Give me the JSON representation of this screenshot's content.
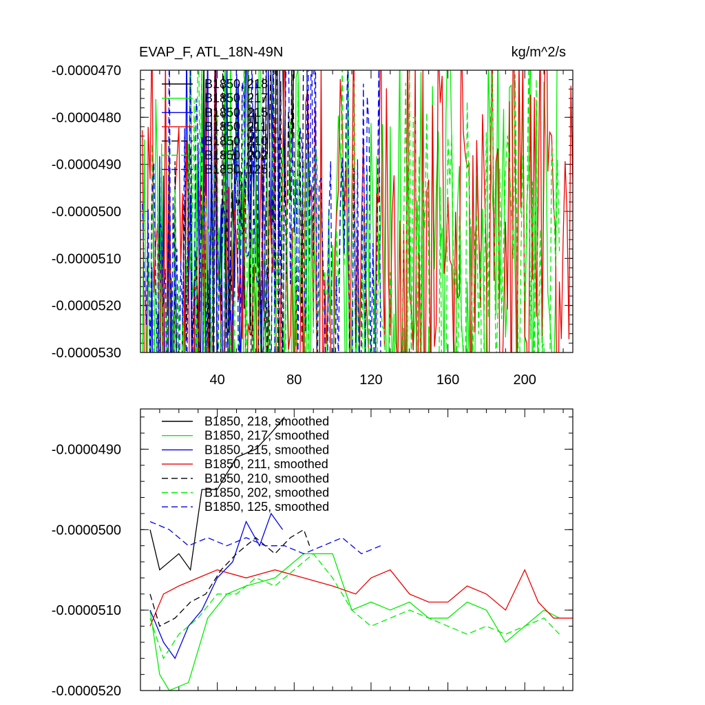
{
  "chart_data": [
    {
      "type": "line",
      "title": "EVAP_F, ATL_18N-49N",
      "units": "kg/m^2/s",
      "xlim": [
        0,
        225
      ],
      "ylim": [
        -5.3e-05,
        -4.7e-05
      ],
      "x_tick_labels": [
        "40",
        "80",
        "120",
        "160",
        "200"
      ],
      "x_ticks": [
        40,
        80,
        120,
        160,
        200
      ],
      "y_tick_labels": [
        "-0.0000470",
        "-0.0000480",
        "-0.0000490",
        "-0.0000500",
        "-0.0000510",
        "-0.0000520",
        "-0.0000530"
      ],
      "y_ticks": [
        -4.7e-05,
        -4.8e-05,
        -4.9e-05,
        -5e-05,
        -5.1e-05,
        -5.2e-05,
        -5.3e-05
      ],
      "series": [
        {
          "name": "B1850, 218",
          "label": "B1850, 218",
          "color": "#000000",
          "dash": "solid",
          "length": 88,
          "mean": -5.08e-05,
          "trend": 1.12e-05,
          "noise": 8.5e-06,
          "seed": 11
        },
        {
          "name": "B1850, 217",
          "label": "B1850, 217",
          "color": "#00ee00",
          "dash": "solid",
          "length": 217,
          "mean": -5.12e-05,
          "trend": 8e-07,
          "noise": 8.5e-06,
          "seed": 23
        },
        {
          "name": "B1850, 215",
          "label": "B1850, 215",
          "color": "#0000ee",
          "dash": "solid",
          "length": 74,
          "mean": -5.11e-05,
          "trend": 6.5e-06,
          "noise": 8e-06,
          "seed": 37
        },
        {
          "name": "B1850, 211",
          "label": "B1850, 211",
          "color": "#ee0000",
          "dash": "solid",
          "length": 225,
          "mean": -5.1e-05,
          "trend": 1.4e-06,
          "noise": 8e-06,
          "seed": 41
        },
        {
          "name": "B1850, 210",
          "label": "B1850, 210",
          "color": "#000000",
          "dash": "dashed",
          "length": 88,
          "mean": -5.11e-05,
          "trend": 4.8e-06,
          "noise": 8e-06,
          "seed": 53
        },
        {
          "name": "B1850, 202",
          "label": "B1850, 202",
          "color": "#00ee00",
          "dash": "dashed",
          "length": 218,
          "mean": -5.14e-05,
          "trend": 5e-07,
          "noise": 8.5e-06,
          "seed": 67
        },
        {
          "name": "B1850, 125",
          "label": "B1850, 125",
          "color": "#0000ee",
          "dash": "dashed",
          "length": 125,
          "mean": -5.04e-05,
          "trend": 1e-07,
          "noise": 7.5e-06,
          "seed": 79
        }
      ]
    },
    {
      "type": "line",
      "title": "",
      "xlim": [
        0,
        225
      ],
      "ylim": [
        -5.2e-05,
        -4.85e-05
      ],
      "x_ticks": [
        40,
        80,
        120,
        160,
        200
      ],
      "y_tick_labels": [
        "-0.0000490",
        "-0.0000500",
        "-0.0000510",
        "-0.0000520"
      ],
      "y_ticks": [
        -4.9e-05,
        -5e-05,
        -5.1e-05,
        -5.2e-05
      ],
      "series": [
        {
          "name": "B1850, 218, smoothed",
          "label": "B1850, 218, smoothed",
          "color": "#000000",
          "dash": "solid",
          "points": [
            [
              5,
              -5e-05
            ],
            [
              10,
              -5.05e-05
            ],
            [
              20,
              -5.03e-05
            ],
            [
              26,
              -5.05e-05
            ],
            [
              32,
              -4.95e-05
            ],
            [
              40,
              -4.95e-05
            ],
            [
              50,
              -4.91e-05
            ],
            [
              60,
              -4.9e-05
            ],
            [
              68,
              -4.88e-05
            ],
            [
              75,
              -4.86e-05
            ]
          ]
        },
        {
          "name": "B1850, 217, smoothed",
          "label": "B1850, 217, smoothed",
          "color": "#00ee00",
          "dash": "solid",
          "points": [
            [
              5,
              -5.1e-05
            ],
            [
              10,
              -5.18e-05
            ],
            [
              15,
              -5.2e-05
            ],
            [
              25,
              -5.19e-05
            ],
            [
              35,
              -5.11e-05
            ],
            [
              45,
              -5.08e-05
            ],
            [
              55,
              -5.07e-05
            ],
            [
              70,
              -5.06e-05
            ],
            [
              85,
              -5.03e-05
            ],
            [
              100,
              -5.03e-05
            ],
            [
              110,
              -5.1e-05
            ],
            [
              120,
              -5.09e-05
            ],
            [
              130,
              -5.1e-05
            ],
            [
              140,
              -5.09e-05
            ],
            [
              150,
              -5.11e-05
            ],
            [
              160,
              -5.11e-05
            ],
            [
              170,
              -5.09e-05
            ],
            [
              180,
              -5.1e-05
            ],
            [
              190,
              -5.14e-05
            ],
            [
              200,
              -5.12e-05
            ],
            [
              210,
              -5.1e-05
            ],
            [
              218,
              -5.11e-05
            ]
          ]
        },
        {
          "name": "B1850, 215, smoothed",
          "label": "B1850, 215, smoothed",
          "color": "#0000ee",
          "dash": "solid",
          "points": [
            [
              5,
              -5.1e-05
            ],
            [
              12,
              -5.14e-05
            ],
            [
              18,
              -5.16e-05
            ],
            [
              25,
              -5.12e-05
            ],
            [
              32,
              -5.1e-05
            ],
            [
              40,
              -5.06e-05
            ],
            [
              48,
              -5.04e-05
            ],
            [
              55,
              -4.99e-05
            ],
            [
              62,
              -5.02e-05
            ],
            [
              68,
              -4.98e-05
            ],
            [
              74,
              -5e-05
            ]
          ]
        },
        {
          "name": "B1850, 211, smoothed",
          "label": "B1850, 211, smoothed",
          "color": "#ee0000",
          "dash": "solid",
          "points": [
            [
              5,
              -5.12e-05
            ],
            [
              12,
              -5.08e-05
            ],
            [
              20,
              -5.07e-05
            ],
            [
              30,
              -5.06e-05
            ],
            [
              40,
              -5.05e-05
            ],
            [
              55,
              -5.06e-05
            ],
            [
              70,
              -5.05e-05
            ],
            [
              85,
              -5.06e-05
            ],
            [
              100,
              -5.07e-05
            ],
            [
              112,
              -5.08e-05
            ],
            [
              120,
              -5.06e-05
            ],
            [
              130,
              -5.05e-05
            ],
            [
              140,
              -5.08e-05
            ],
            [
              150,
              -5.09e-05
            ],
            [
              160,
              -5.09e-05
            ],
            [
              170,
              -5.07e-05
            ],
            [
              180,
              -5.08e-05
            ],
            [
              190,
              -5.1e-05
            ],
            [
              200,
              -5.05e-05
            ],
            [
              207,
              -5.09e-05
            ],
            [
              215,
              -5.11e-05
            ],
            [
              225,
              -5.11e-05
            ]
          ]
        },
        {
          "name": "B1850, 210, smoothed",
          "label": "B1850, 210, smoothed",
          "color": "#000000",
          "dash": "dashed",
          "points": [
            [
              5,
              -5.08e-05
            ],
            [
              10,
              -5.12e-05
            ],
            [
              18,
              -5.11e-05
            ],
            [
              26,
              -5.09e-05
            ],
            [
              34,
              -5.08e-05
            ],
            [
              42,
              -5.05e-05
            ],
            [
              50,
              -5.03e-05
            ],
            [
              60,
              -5.01e-05
            ],
            [
              70,
              -5.03e-05
            ],
            [
              78,
              -5.01e-05
            ],
            [
              85,
              -5e-05
            ],
            [
              88,
              -5.02e-05
            ]
          ]
        },
        {
          "name": "B1850, 202, smoothed",
          "label": "B1850, 202, smoothed",
          "color": "#00ee00",
          "dash": "dashed",
          "points": [
            [
              5,
              -5.11e-05
            ],
            [
              12,
              -5.16e-05
            ],
            [
              20,
              -5.13e-05
            ],
            [
              30,
              -5.11e-05
            ],
            [
              40,
              -5.08e-05
            ],
            [
              50,
              -5.08e-05
            ],
            [
              60,
              -5.06e-05
            ],
            [
              70,
              -5.07e-05
            ],
            [
              80,
              -5.05e-05
            ],
            [
              90,
              -5.03e-05
            ],
            [
              100,
              -5.06e-05
            ],
            [
              110,
              -5.1e-05
            ],
            [
              120,
              -5.12e-05
            ],
            [
              130,
              -5.11e-05
            ],
            [
              140,
              -5.1e-05
            ],
            [
              150,
              -5.11e-05
            ],
            [
              160,
              -5.12e-05
            ],
            [
              170,
              -5.13e-05
            ],
            [
              180,
              -5.12e-05
            ],
            [
              190,
              -5.13e-05
            ],
            [
              200,
              -5.12e-05
            ],
            [
              210,
              -5.11e-05
            ],
            [
              218,
              -5.13e-05
            ]
          ]
        },
        {
          "name": "B1850, 125, smoothed",
          "label": "B1850, 125, smoothed",
          "color": "#0000ee",
          "dash": "dashed",
          "points": [
            [
              5,
              -4.99e-05
            ],
            [
              15,
              -5e-05
            ],
            [
              25,
              -5.02e-05
            ],
            [
              35,
              -5.01e-05
            ],
            [
              45,
              -5.02e-05
            ],
            [
              55,
              -5.01e-05
            ],
            [
              65,
              -5.02e-05
            ],
            [
              75,
              -5.02e-05
            ],
            [
              85,
              -5.03e-05
            ],
            [
              95,
              -5.02e-05
            ],
            [
              105,
              -5.01e-05
            ],
            [
              115,
              -5.03e-05
            ],
            [
              125,
              -5.02e-05
            ]
          ]
        }
      ]
    }
  ]
}
